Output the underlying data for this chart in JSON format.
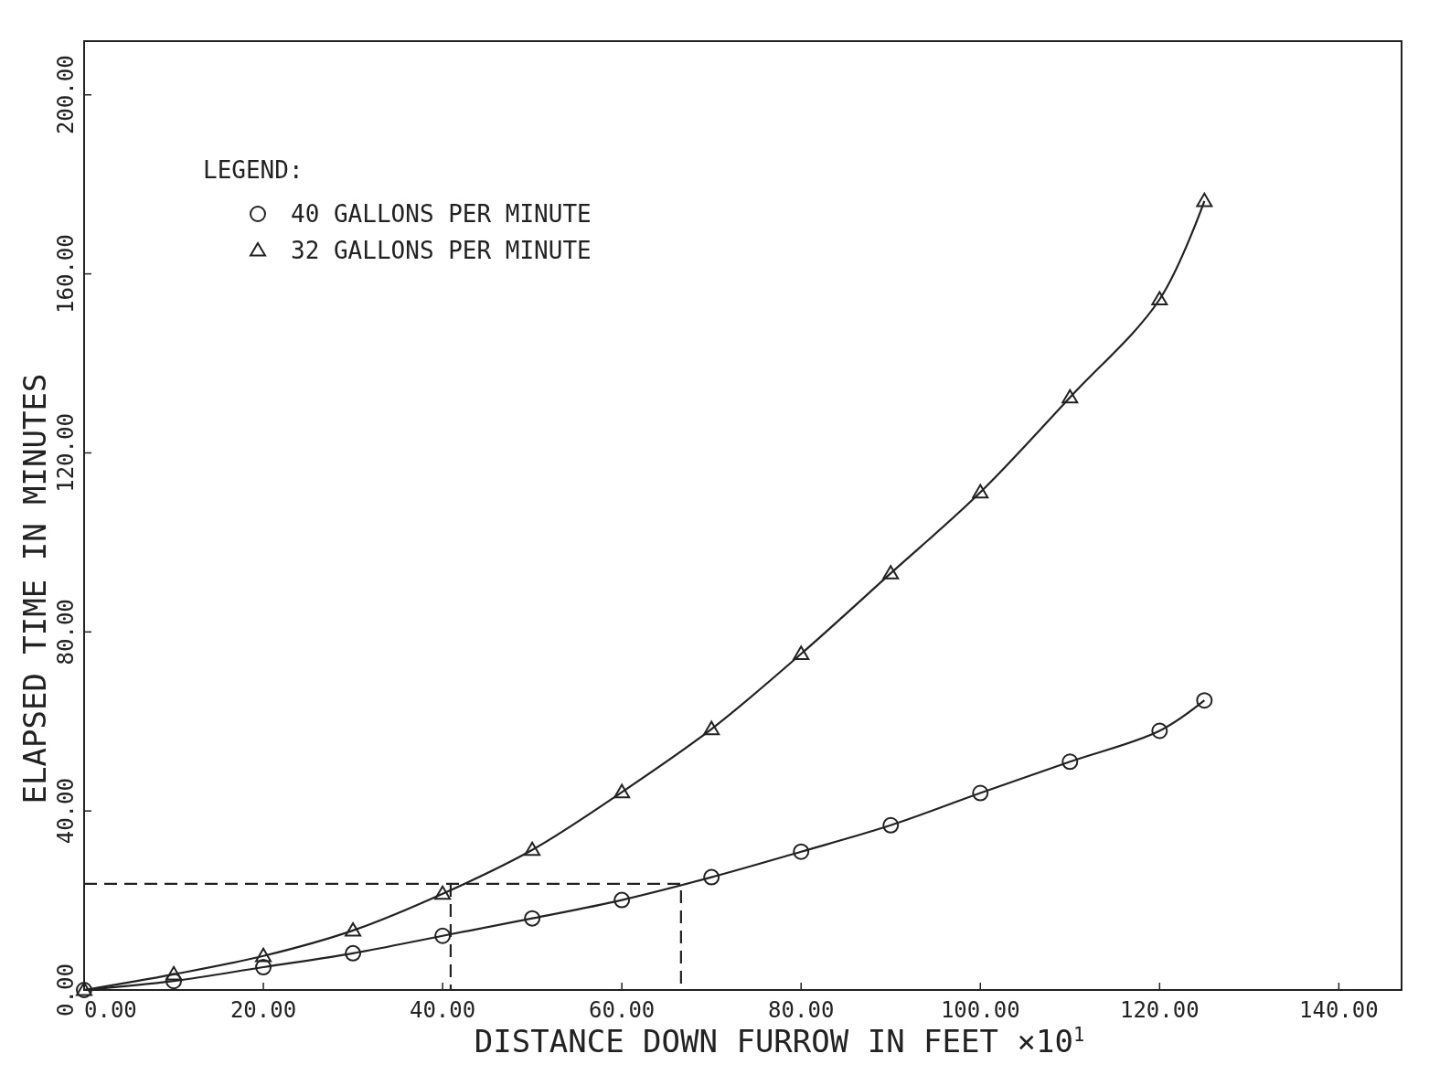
{
  "chart_data": {
    "type": "line",
    "xlabel": "DISTANCE DOWN FURROW IN FEET  ×10$^{1}$",
    "ylabel": "ELAPSED TIME IN MINUTES",
    "legend_title": "LEGEND:",
    "legend": "top left",
    "grid": false,
    "xlim": [
      0,
      147
    ],
    "ylim": [
      0,
      212
    ],
    "xticks": [
      {
        "value": 0,
        "label": "0.00"
      },
      {
        "value": 20,
        "label": "20.00"
      },
      {
        "value": 40,
        "label": "40.00"
      },
      {
        "value": 60,
        "label": "60.00"
      },
      {
        "value": 80,
        "label": "80.00"
      },
      {
        "value": 100,
        "label": "100.00"
      },
      {
        "value": 120,
        "label": "120.00"
      },
      {
        "value": 140,
        "label": "140.00"
      }
    ],
    "yticks": [
      {
        "value": 0,
        "label": "0.00"
      },
      {
        "value": 40,
        "label": "40.00"
      },
      {
        "value": 80,
        "label": "80.00"
      },
      {
        "value": 120,
        "label": "120.00"
      },
      {
        "value": 160,
        "label": "160.00"
      },
      {
        "value": 200,
        "label": "200.00"
      }
    ],
    "series": [
      {
        "name": "40 GALLONS PER MINUTE",
        "color": "#222222",
        "marker": "circle",
        "line_style": "solid",
        "x": [
          0,
          10,
          20,
          30,
          40,
          50,
          60,
          70,
          80,
          90,
          100,
          110,
          120,
          125
        ],
        "values": [
          0,
          2,
          5.1,
          8.2,
          12.1,
          16,
          20.1,
          25.2,
          30.9,
          36.8,
          44,
          51,
          57.9,
          64.7
        ]
      },
      {
        "name": "32 GALLONS PER MINUTE",
        "color": "#222222",
        "marker": "triangle",
        "line_style": "solid",
        "x": [
          0,
          10,
          20,
          30,
          40,
          50,
          60,
          70,
          80,
          90,
          100,
          110,
          120,
          125
        ],
        "values": [
          0,
          3.5,
          7.6,
          13.3,
          21.5,
          31.3,
          44.2,
          58.3,
          75.1,
          93.1,
          111.2,
          132.4,
          154.3,
          176.3
        ]
      },
      {
        "color": "#222222",
        "marker": "none",
        "line_style": "dashed",
        "x": [
          0,
          66.6,
          66.6
        ],
        "values": [
          23.7,
          23.7,
          0
        ]
      },
      {
        "color": "#222222",
        "marker": "none",
        "line_style": "dashed",
        "x": [
          40.9,
          40.9
        ],
        "values": [
          23.7,
          0
        ]
      }
    ]
  }
}
